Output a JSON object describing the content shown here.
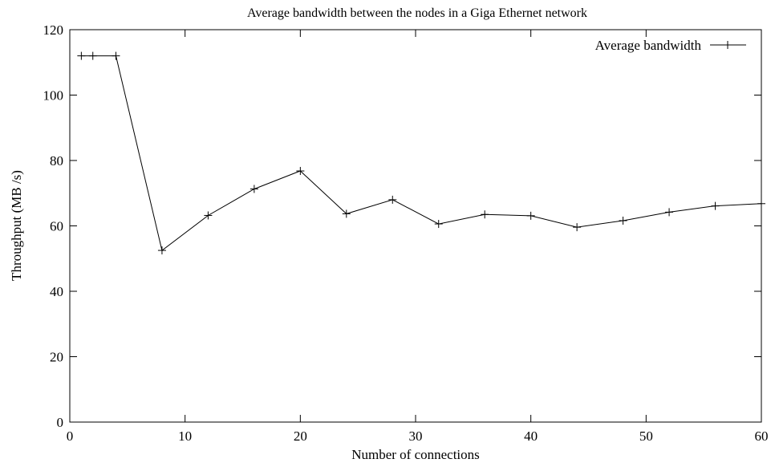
{
  "chart_data": {
    "type": "line",
    "title": "Average bandwidth between the nodes in a Giga Ethernet network",
    "xlabel": "Number of connections",
    "ylabel": "Throughput (MB /s)",
    "xlim": [
      0,
      60
    ],
    "ylim": [
      0,
      120
    ],
    "xticks": [
      0,
      10,
      20,
      30,
      40,
      50,
      60
    ],
    "yticks": [
      0,
      20,
      40,
      60,
      80,
      100,
      120
    ],
    "grid": false,
    "legend_position": "top-right",
    "series": [
      {
        "name": "Average bandwidth",
        "marker": "plus",
        "color": "#000000",
        "x": [
          1,
          2,
          4,
          8,
          12,
          16,
          20,
          24,
          28,
          32,
          36,
          40,
          44,
          48,
          52,
          56,
          60
        ],
        "y": [
          112,
          112,
          112,
          52.5,
          63.2,
          71.3,
          76.8,
          63.7,
          68,
          60.6,
          63.5,
          63.1,
          59.6,
          61.6,
          64.2,
          66.1,
          66.8
        ]
      }
    ]
  }
}
